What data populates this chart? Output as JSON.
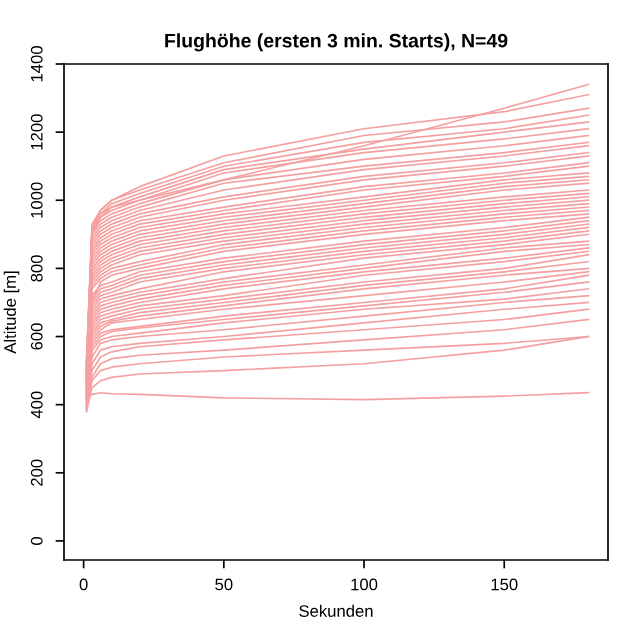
{
  "chart_data": {
    "type": "line",
    "title": "Flughöhe (ersten 3 min. Starts), N=49",
    "xlabel": "Sekunden",
    "ylabel": "Altitude [m]",
    "x": [
      1,
      3,
      6,
      10,
      20,
      50,
      100,
      150,
      180
    ],
    "xlim": [
      -7,
      187
    ],
    "ylim": [
      -56,
      1400
    ],
    "xticks": [
      0,
      50,
      100,
      150
    ],
    "yticks": [
      0,
      200,
      400,
      600,
      800,
      1000,
      1200,
      1400
    ],
    "grid": false,
    "legend": false,
    "series": [
      {
        "color": "#f5a0a0",
        "values": [
          420,
          430,
          435,
          432,
          430,
          420,
          415,
          425,
          435
        ]
      },
      {
        "color": "#f5a0a0",
        "values": [
          380,
          450,
          470,
          480,
          490,
          500,
          520,
          560,
          600
        ]
      },
      {
        "color": "#f5a0a0",
        "values": [
          400,
          470,
          500,
          510,
          520,
          540,
          560,
          580,
          600
        ]
      },
      {
        "color": "#f5a0a0",
        "values": [
          390,
          480,
          520,
          535,
          545,
          560,
          590,
          620,
          650
        ]
      },
      {
        "color": "#f5a0a0",
        "values": [
          410,
          500,
          540,
          555,
          570,
          590,
          620,
          650,
          680
        ]
      },
      {
        "color": "#f5a0a0",
        "values": [
          380,
          520,
          560,
          570,
          580,
          600,
          640,
          680,
          700
        ]
      },
      {
        "color": "#f5a0a0",
        "values": [
          420,
          540,
          580,
          590,
          600,
          620,
          660,
          700,
          720
        ]
      },
      {
        "color": "#f5a0a0",
        "values": [
          400,
          560,
          590,
          600,
          610,
          640,
          680,
          710,
          740
        ]
      },
      {
        "color": "#f5a0a0",
        "values": [
          430,
          570,
          600,
          615,
          625,
          650,
          690,
          730,
          760
        ]
      },
      {
        "color": "#f5a0a0",
        "values": [
          390,
          580,
          610,
          620,
          630,
          660,
          700,
          740,
          780
        ]
      },
      {
        "color": "#f5a0a0",
        "values": [
          420,
          590,
          620,
          640,
          650,
          680,
          720,
          760,
          790
        ]
      },
      {
        "color": "#f5a0a0",
        "values": [
          450,
          600,
          630,
          645,
          660,
          690,
          740,
          780,
          800
        ]
      },
      {
        "color": "#f5a0a0",
        "values": [
          410,
          610,
          640,
          650,
          670,
          700,
          750,
          790,
          820
        ]
      },
      {
        "color": "#f5a0a0",
        "values": [
          430,
          620,
          650,
          660,
          680,
          710,
          760,
          800,
          840
        ]
      },
      {
        "color": "#f5a0a0",
        "values": [
          400,
          630,
          660,
          670,
          690,
          720,
          780,
          820,
          850
        ]
      },
      {
        "color": "#f5a0a0",
        "values": [
          440,
          640,
          670,
          680,
          700,
          740,
          790,
          830,
          860
        ]
      },
      {
        "color": "#f5a0a0",
        "values": [
          420,
          650,
          680,
          690,
          710,
          750,
          800,
          850,
          870
        ]
      },
      {
        "color": "#f5a0a0",
        "values": [
          460,
          660,
          690,
          700,
          720,
          760,
          810,
          860,
          880
        ]
      },
      {
        "color": "#f5a0a0",
        "values": [
          430,
          670,
          700,
          710,
          730,
          770,
          830,
          870,
          900
        ]
      },
      {
        "color": "#f5a0a0",
        "values": [
          450,
          680,
          710,
          720,
          740,
          790,
          840,
          880,
          910
        ]
      },
      {
        "color": "#f5a0a0",
        "values": [
          410,
          690,
          720,
          730,
          760,
          800,
          850,
          890,
          920
        ]
      },
      {
        "color": "#f5a0a0",
        "values": [
          470,
          700,
          730,
          740,
          770,
          810,
          860,
          900,
          930
        ]
      },
      {
        "color": "#f5a0a0",
        "values": [
          440,
          710,
          740,
          750,
          780,
          820,
          870,
          910,
          940
        ]
      },
      {
        "color": "#f5a0a0",
        "values": [
          460,
          720,
          750,
          760,
          790,
          830,
          880,
          920,
          950
        ]
      },
      {
        "color": "#f5a0a0",
        "values": [
          420,
          700,
          760,
          780,
          800,
          850,
          900,
          940,
          960
        ]
      },
      {
        "color": "#f5a0a0",
        "values": [
          480,
          740,
          770,
          790,
          810,
          860,
          910,
          950,
          970
        ]
      },
      {
        "color": "#f5a0a0",
        "values": [
          450,
          750,
          780,
          800,
          820,
          870,
          920,
          960,
          980
        ]
      },
      {
        "color": "#f5a0a0",
        "values": [
          470,
          760,
          790,
          810,
          840,
          880,
          930,
          970,
          990
        ]
      },
      {
        "color": "#f5a0a0",
        "values": [
          430,
          770,
          800,
          820,
          850,
          890,
          940,
          980,
          1000
        ]
      },
      {
        "color": "#f5a0a0",
        "values": [
          490,
          780,
          810,
          830,
          860,
          900,
          950,
          990,
          1010
        ]
      },
      {
        "color": "#f5a0a0",
        "values": [
          460,
          790,
          820,
          840,
          870,
          910,
          960,
          1000,
          1020
        ]
      },
      {
        "color": "#f5a0a0",
        "values": [
          480,
          800,
          830,
          850,
          880,
          920,
          970,
          1010,
          1030
        ]
      },
      {
        "color": "#f5a0a0",
        "values": [
          440,
          810,
          840,
          860,
          890,
          930,
          980,
          1030,
          1050
        ]
      },
      {
        "color": "#f5a0a0",
        "values": [
          500,
          820,
          850,
          870,
          900,
          940,
          990,
          1040,
          1060
        ]
      },
      {
        "color": "#f5a0a0",
        "values": [
          470,
          830,
          860,
          880,
          910,
          950,
          1000,
          1050,
          1070
        ]
      },
      {
        "color": "#f5a0a0",
        "values": [
          490,
          840,
          870,
          890,
          920,
          960,
          1010,
          1060,
          1080
        ]
      },
      {
        "color": "#f5a0a0",
        "values": [
          450,
          850,
          880,
          900,
          930,
          970,
          1030,
          1070,
          1100
        ]
      },
      {
        "color": "#f5a0a0",
        "values": [
          510,
          860,
          890,
          910,
          940,
          980,
          1040,
          1080,
          1110
        ]
      },
      {
        "color": "#f5a0a0",
        "values": [
          480,
          870,
          900,
          920,
          950,
          1000,
          1060,
          1100,
          1130
        ]
      },
      {
        "color": "#f5a0a0",
        "values": [
          500,
          880,
          910,
          930,
          960,
          1010,
          1070,
          1110,
          1140
        ]
      },
      {
        "color": "#f5a0a0",
        "values": [
          460,
          890,
          920,
          940,
          970,
          1030,
          1090,
          1130,
          1160
        ]
      },
      {
        "color": "#f5a0a0",
        "values": [
          520,
          900,
          930,
          950,
          980,
          1050,
          1100,
          1140,
          1170
        ]
      },
      {
        "color": "#f5a0a0",
        "values": [
          490,
          910,
          940,
          960,
          990,
          1060,
          1120,
          1160,
          1190
        ]
      },
      {
        "color": "#f5a0a0",
        "values": [
          510,
          910,
          950,
          970,
          1000,
          1080,
          1140,
          1180,
          1210
        ]
      },
      {
        "color": "#f5a0a0",
        "values": [
          470,
          900,
          950,
          980,
          1010,
          1090,
          1150,
          1200,
          1230
        ]
      },
      {
        "color": "#f5a0a0",
        "values": [
          530,
          910,
          960,
          990,
          1020,
          1100,
          1170,
          1210,
          1250
        ]
      },
      {
        "color": "#f5a0a0",
        "values": [
          500,
          920,
          970,
          1000,
          1030,
          1110,
          1190,
          1230,
          1270
        ]
      },
      {
        "color": "#f5a0a0",
        "values": [
          520,
          930,
          970,
          1000,
          1040,
          1130,
          1210,
          1260,
          1310
        ]
      },
      {
        "color": "#f5a0a0",
        "values": [
          500,
          920,
          960,
          980,
          1000,
          1060,
          1160,
          1270,
          1340
        ]
      }
    ]
  }
}
